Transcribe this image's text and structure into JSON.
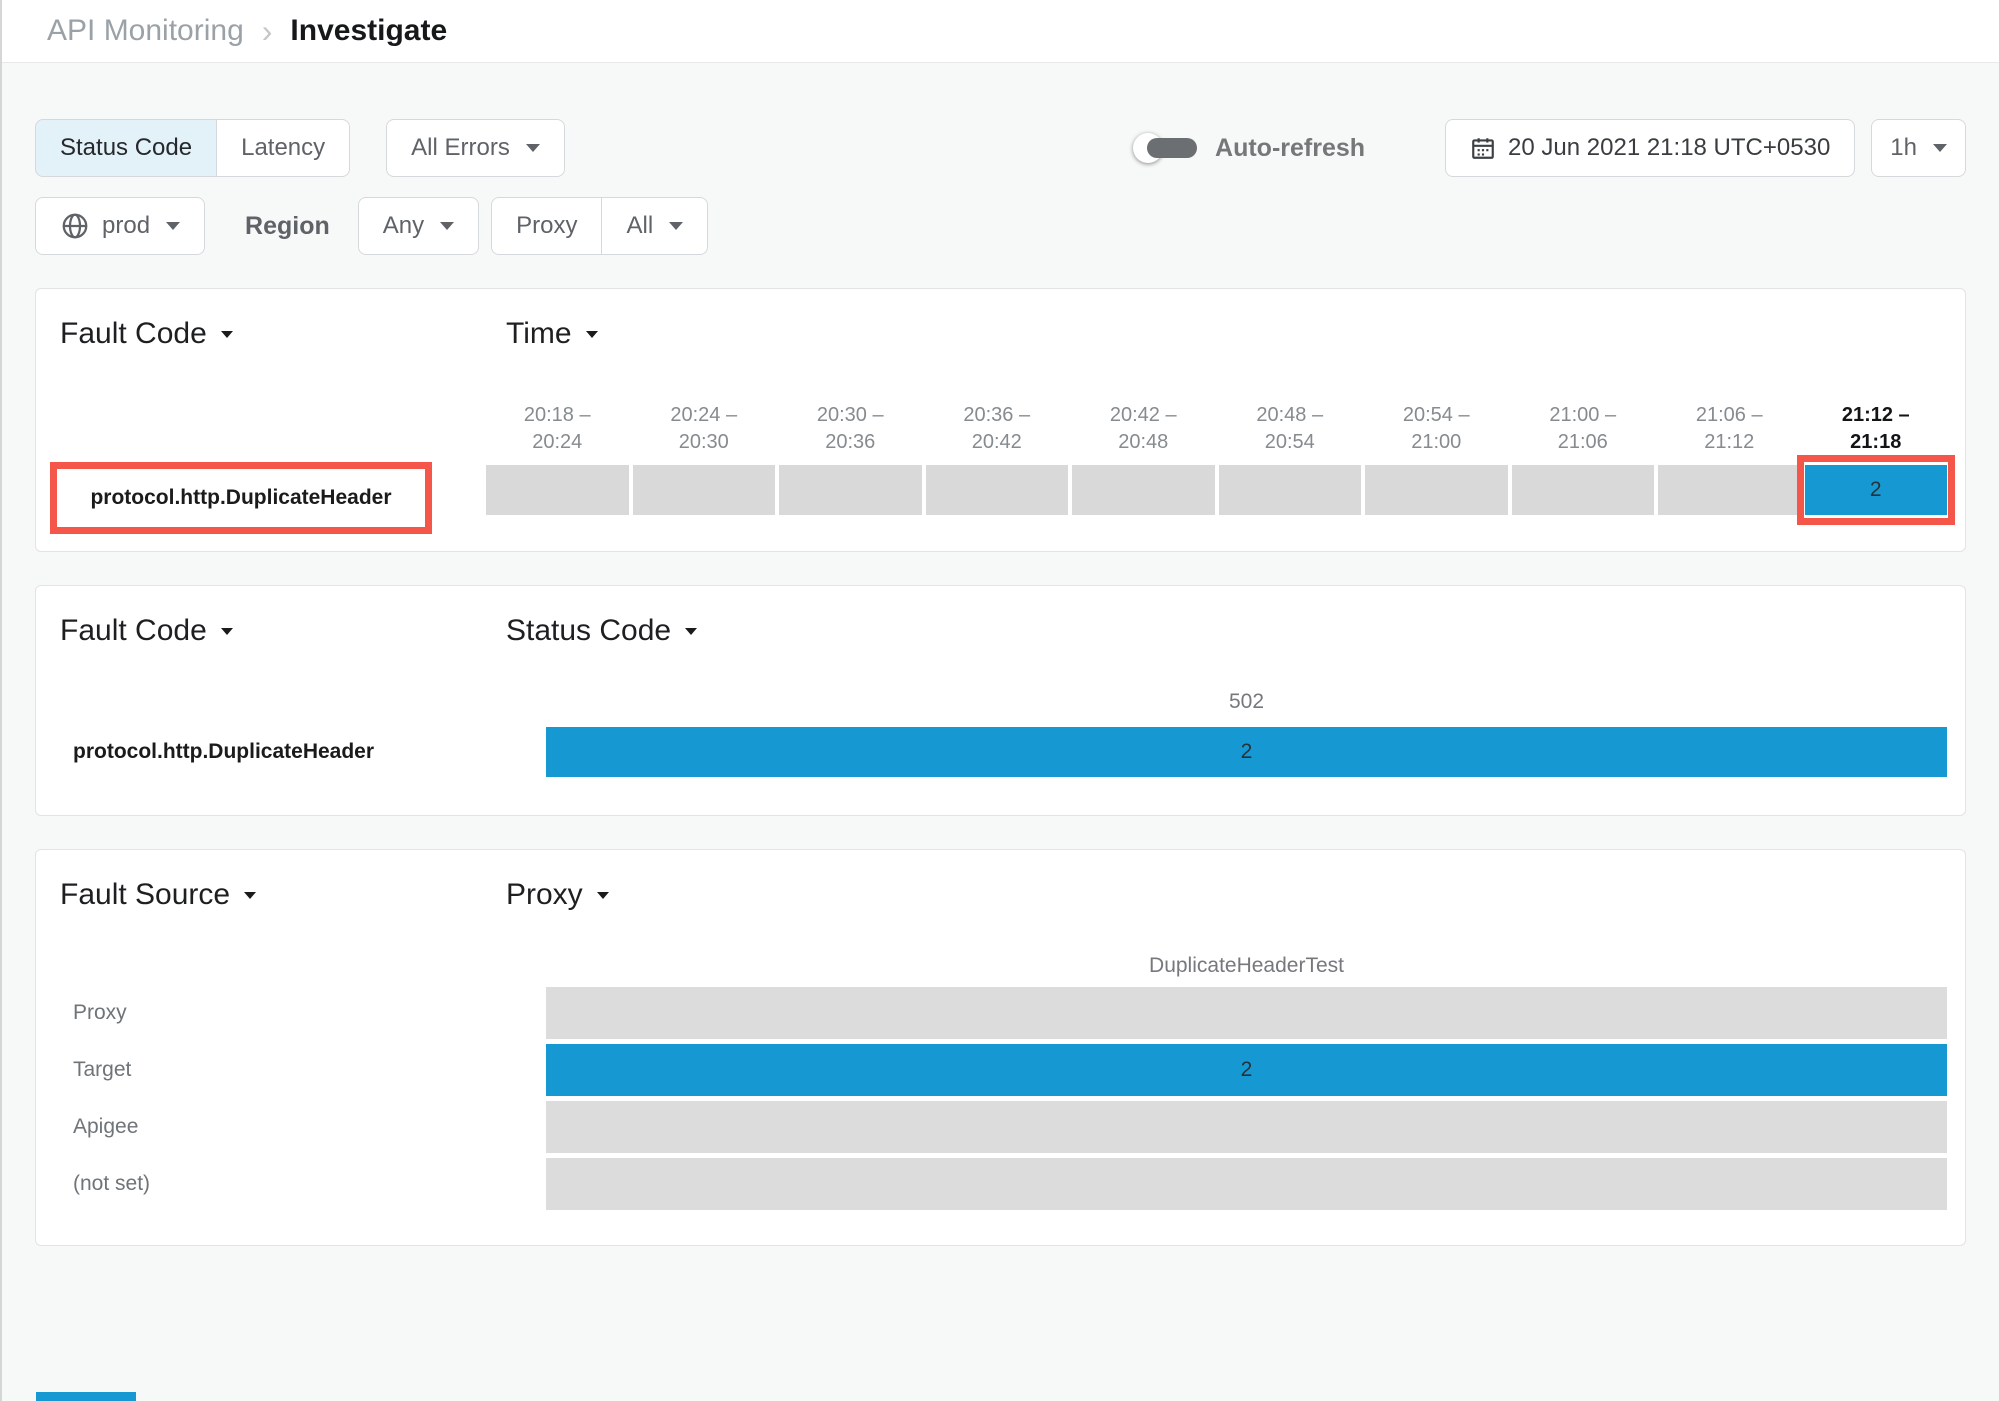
{
  "breadcrumb": {
    "parent": "API Monitoring",
    "separator": "›",
    "current": "Investigate"
  },
  "filters": {
    "metric_tabs": [
      {
        "label": "Status Code",
        "selected": true
      },
      {
        "label": "Latency",
        "selected": false
      }
    ],
    "errors_filter": "All Errors",
    "auto_refresh_label": "Auto-refresh",
    "auto_refresh_on": false,
    "datetime": "20 Jun 2021 21:18 UTC+0530",
    "time_range": "1h",
    "environment": "prod",
    "region_label": "Region",
    "region_value": "Any",
    "proxy_label": "Proxy",
    "proxy_value": "All"
  },
  "colors": {
    "accent_blue": "#1699d3",
    "bar_gray": "#dcdcdc",
    "cell_gray": "#d9d9d9",
    "annotation_red": "#f4564a",
    "selected_tab_bg": "#e3f1f9"
  },
  "chart_data": [
    {
      "type": "heatmap",
      "panel": "fault-code-by-time",
      "dimension": "Fault Code",
      "axis": "Time",
      "columns": [
        "20:18 – 20:24",
        "20:24 – 20:30",
        "20:30 – 20:36",
        "20:36 – 20:42",
        "20:42 – 20:48",
        "20:48 – 20:54",
        "20:54 – 21:00",
        "21:00 – 21:06",
        "21:06 – 21:12",
        "21:12 – 21:18"
      ],
      "highlighted_column_index": 9,
      "rows": [
        {
          "label": "protocol.http.DuplicateHeader",
          "label_annotated": true,
          "values": [
            null,
            null,
            null,
            null,
            null,
            null,
            null,
            null,
            null,
            2
          ]
        }
      ]
    },
    {
      "type": "bar",
      "panel": "fault-code-by-status-code",
      "dimension": "Fault Code",
      "axis": "Status Code",
      "categories": [
        "502"
      ],
      "rows": [
        {
          "label": "protocol.http.DuplicateHeader",
          "value": 2,
          "filled": true
        }
      ]
    },
    {
      "type": "bar",
      "panel": "fault-source-by-proxy",
      "dimension": "Fault Source",
      "axis": "Proxy",
      "categories": [
        "DuplicateHeaderTest"
      ],
      "rows": [
        {
          "label": "Proxy",
          "value": null,
          "filled": false
        },
        {
          "label": "Target",
          "value": 2,
          "filled": true
        },
        {
          "label": "Apigee",
          "value": null,
          "filled": false
        },
        {
          "label": "(not set)",
          "value": null,
          "filled": false
        }
      ]
    }
  ]
}
